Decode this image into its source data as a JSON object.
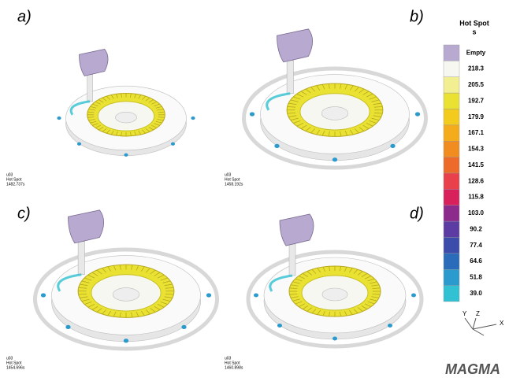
{
  "panels": [
    {
      "label": "a)",
      "caption": [
        "u03",
        "Hot Spot",
        "1482.737s"
      ]
    },
    {
      "label": "b)",
      "caption": [
        "u03",
        "Hot Spot",
        "1458.192s"
      ]
    },
    {
      "label": "c)",
      "caption": [
        "u03",
        "Hot Spot",
        "1454.696s"
      ]
    },
    {
      "label": "d)",
      "caption": [
        "u03",
        "Hot Spot",
        "1460.898s"
      ]
    }
  ],
  "legend": {
    "title": "Hot Spot",
    "unit": "s",
    "items": [
      {
        "label": "Empty",
        "color": "#b8a9d0"
      },
      {
        "label": "218.3",
        "color": "#f7f7f2"
      },
      {
        "label": "205.5",
        "color": "#f2ee92"
      },
      {
        "label": "192.7",
        "color": "#e9e233"
      },
      {
        "label": "179.9",
        "color": "#f3cb1c"
      },
      {
        "label": "167.1",
        "color": "#f5ac1c"
      },
      {
        "label": "154.3",
        "color": "#f18c20"
      },
      {
        "label": "141.5",
        "color": "#ec6a2a"
      },
      {
        "label": "128.6",
        "color": "#e8414b"
      },
      {
        "label": "115.8",
        "color": "#d8215c"
      },
      {
        "label": "103.0",
        "color": "#8c2b8c"
      },
      {
        "label": "90.2",
        "color": "#5c3ba2"
      },
      {
        "label": "77.4",
        "color": "#3b4caa"
      },
      {
        "label": "64.6",
        "color": "#2b6cba"
      },
      {
        "label": "51.8",
        "color": "#2b9acd"
      },
      {
        "label": "39.0",
        "color": "#31c1d2"
      }
    ]
  },
  "axes": [
    "Y",
    "Z",
    "X"
  ],
  "logo": "MAGMA"
}
